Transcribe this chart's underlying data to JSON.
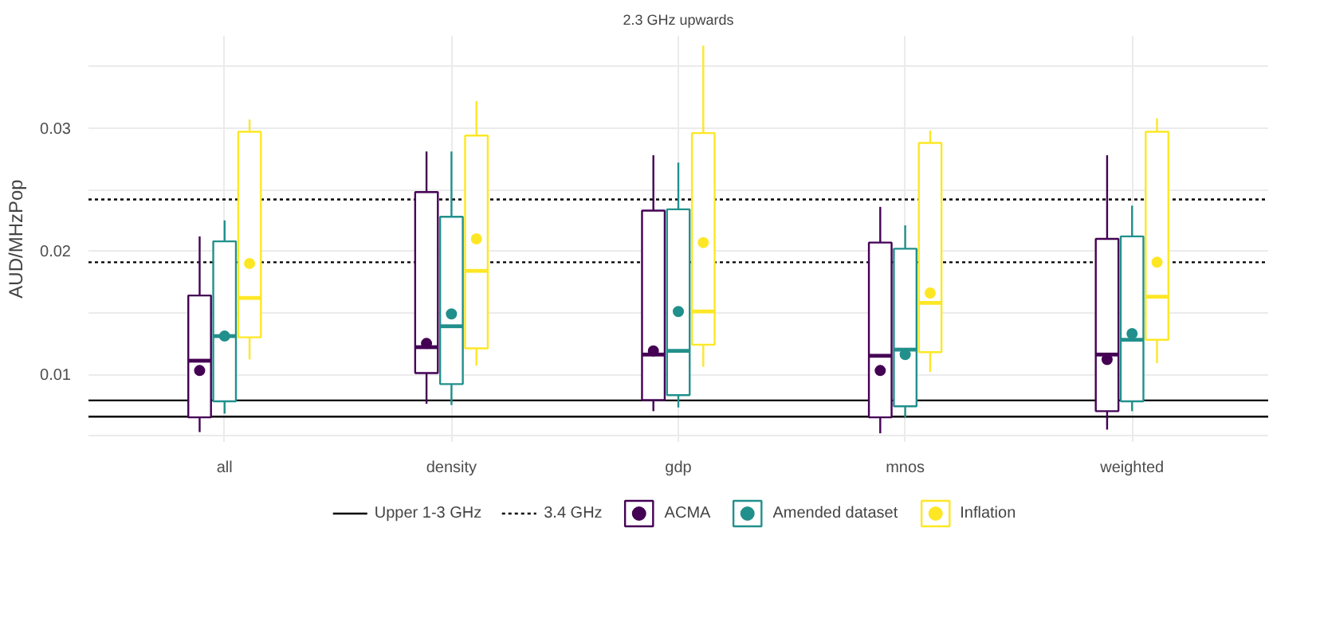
{
  "chart_data": {
    "type": "box",
    "title": "2.3 GHz upwards",
    "ylabel": "AUD/MHzPop",
    "categories": [
      "all",
      "density",
      "gdp",
      "mnos",
      "weighted"
    ],
    "series": [
      {
        "name": "ACMA",
        "color": "#440154",
        "boxes": [
          {
            "low": 0.0053,
            "q1": 0.0065,
            "median": 0.0111,
            "q3": 0.0164,
            "high": 0.0212,
            "mean": 0.0103
          },
          {
            "low": 0.0076,
            "q1": 0.0101,
            "median": 0.0122,
            "q3": 0.0248,
            "high": 0.0281,
            "mean": 0.0125
          },
          {
            "low": 0.007,
            "q1": 0.0079,
            "median": 0.0116,
            "q3": 0.0233,
            "high": 0.0278,
            "mean": 0.0119
          },
          {
            "low": 0.0052,
            "q1": 0.0065,
            "median": 0.0115,
            "q3": 0.0207,
            "high": 0.0236,
            "mean": 0.0103
          },
          {
            "low": 0.0055,
            "q1": 0.007,
            "median": 0.0116,
            "q3": 0.021,
            "high": 0.0278,
            "mean": 0.0112
          }
        ]
      },
      {
        "name": "Amended dataset",
        "color": "#21908c",
        "boxes": [
          {
            "low": 0.0068,
            "q1": 0.0078,
            "median": 0.0131,
            "q3": 0.0208,
            "high": 0.0225,
            "mean": 0.0131
          },
          {
            "low": 0.0075,
            "q1": 0.0092,
            "median": 0.0139,
            "q3": 0.0228,
            "high": 0.0281,
            "mean": 0.0149
          },
          {
            "low": 0.0073,
            "q1": 0.0083,
            "median": 0.0119,
            "q3": 0.0234,
            "high": 0.0272,
            "mean": 0.0151
          },
          {
            "low": 0.0065,
            "q1": 0.0074,
            "median": 0.012,
            "q3": 0.0202,
            "high": 0.0221,
            "mean": 0.0116
          },
          {
            "low": 0.007,
            "q1": 0.0078,
            "median": 0.0128,
            "q3": 0.0212,
            "high": 0.0237,
            "mean": 0.0133
          }
        ]
      },
      {
        "name": "Inflation",
        "color": "#fde725",
        "boxes": [
          {
            "low": 0.0112,
            "q1": 0.013,
            "median": 0.0162,
            "q3": 0.0297,
            "high": 0.0307,
            "mean": 0.019
          },
          {
            "low": 0.0107,
            "q1": 0.0121,
            "median": 0.0184,
            "q3": 0.0294,
            "high": 0.0322,
            "mean": 0.021
          },
          {
            "low": 0.0106,
            "q1": 0.0124,
            "median": 0.0151,
            "q3": 0.0296,
            "high": 0.0367,
            "mean": 0.0207
          },
          {
            "low": 0.0102,
            "q1": 0.0118,
            "median": 0.0158,
            "q3": 0.0288,
            "high": 0.0298,
            "mean": 0.0166
          },
          {
            "low": 0.0109,
            "q1": 0.0128,
            "median": 0.0163,
            "q3": 0.0297,
            "high": 0.0308,
            "mean": 0.0191
          }
        ]
      }
    ],
    "ref_lines": [
      {
        "axis": "y",
        "value": 0.00787,
        "label": "Upper 1-3 GHz",
        "color": "#000000",
        "line_style": "solid"
      },
      {
        "axis": "y",
        "value": 0.00655,
        "color": "#000000",
        "line_style": "solid"
      },
      {
        "axis": "y",
        "value": 0.0242,
        "label": "3.4 GHz",
        "color": "#000000",
        "line_style": "dotted"
      },
      {
        "axis": "y",
        "value": 0.0191,
        "color": "#000000",
        "line_style": "dotted"
      }
    ],
    "ylim": [
      0.0045,
      0.0375
    ],
    "yticks": [
      {
        "value": 0.005,
        "label": null
      },
      0.01,
      {
        "value": 0.015,
        "label": null
      },
      0.02,
      {
        "value": 0.025,
        "label": null
      },
      0.03,
      {
        "value": 0.035,
        "label": null
      }
    ],
    "grid": true,
    "legend": "bottom",
    "marker": "circle"
  }
}
